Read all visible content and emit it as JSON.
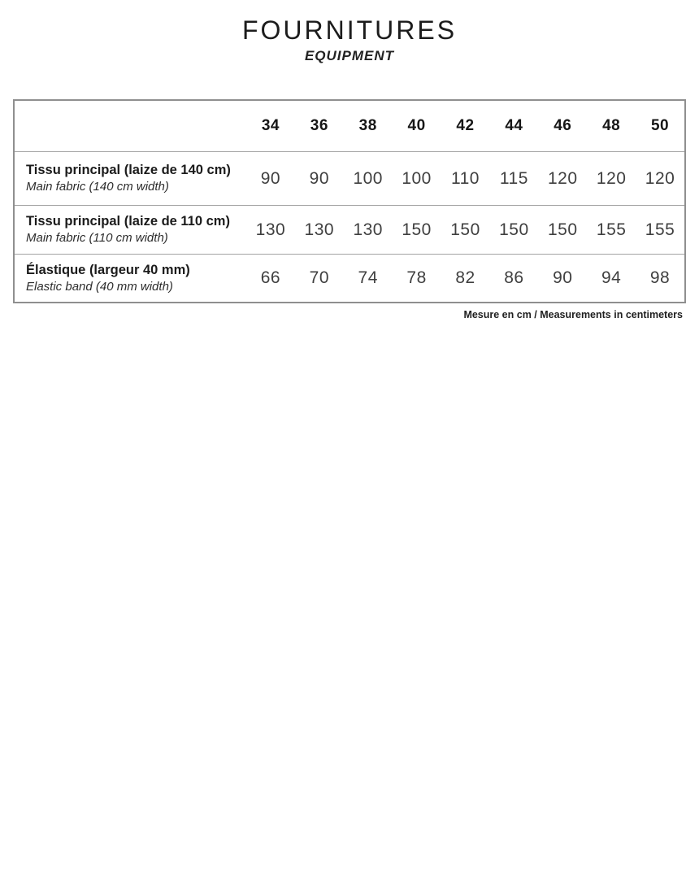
{
  "page": {
    "title": "FOURNITURES",
    "subtitle": "EQUIPMENT",
    "footnote": "Mesure en cm / Measurements in centimeters"
  },
  "table": {
    "sizes": [
      "34",
      "36",
      "38",
      "40",
      "42",
      "44",
      "46",
      "48",
      "50"
    ],
    "rows": [
      {
        "label_fr": "Tissu principal (laize de 140 cm)",
        "label_en": "Main fabric (140 cm width)",
        "values": [
          "90",
          "90",
          "100",
          "100",
          "110",
          "115",
          "120",
          "120",
          "120"
        ]
      },
      {
        "label_fr": "Tissu principal (laize de 110 cm)",
        "label_en": "Main fabric (110 cm width)",
        "values": [
          "130",
          "130",
          "130",
          "150",
          "150",
          "150",
          "150",
          "155",
          "155"
        ]
      },
      {
        "label_fr": "Élastique (largeur 40 mm)",
        "label_en": "Elastic band (40 mm width)",
        "values": [
          "66",
          "70",
          "74",
          "78",
          "82",
          "86",
          "90",
          "94",
          "98"
        ]
      }
    ]
  }
}
